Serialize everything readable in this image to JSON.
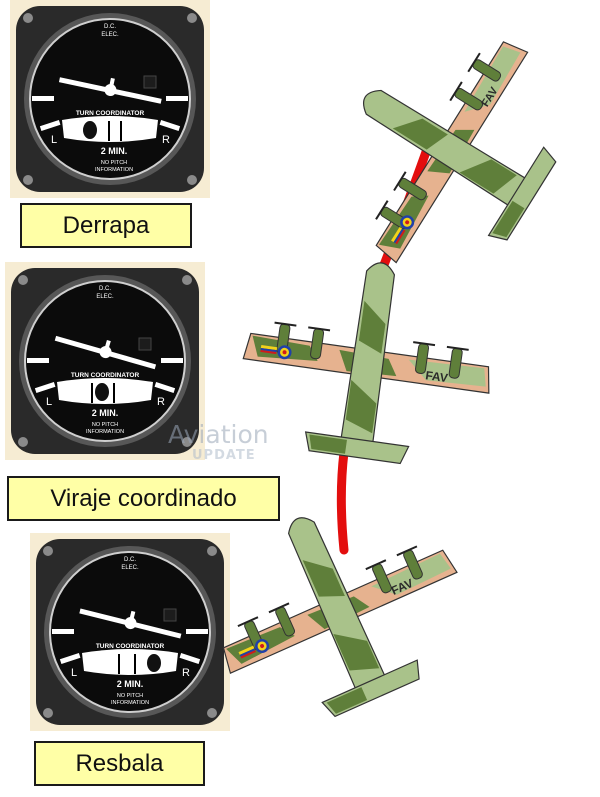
{
  "colors": {
    "panel_bg": "#f6ecd3",
    "bezel": "#2a2a2a",
    "face": "#0b0b0b",
    "marking": "#ffffff",
    "label_bg": "#ffffa6",
    "trail": "#e30e0e",
    "camo_dark": "#5f7f3a",
    "camo_light": "#a9c28a",
    "camo_tan": "#e6b28f"
  },
  "instruments": [
    {
      "name": "turn-coordinator-skid",
      "top_text": "D.C.",
      "top_text_2": "ELEC.",
      "title": "TURN COORDINATOR",
      "left_mark": "L",
      "right_mark": "R",
      "minutes": "2 MIN.",
      "footer_1": "NO PITCH",
      "footer_2": "INFORMATION"
    },
    {
      "name": "turn-coordinator-coordinated",
      "top_text": "D.C.",
      "top_text_2": "ELEC.",
      "title": "TURN COORDINATOR",
      "left_mark": "L",
      "right_mark": "R",
      "minutes": "2 MIN.",
      "footer_1": "NO PITCH",
      "footer_2": "INFORMATION"
    },
    {
      "name": "turn-coordinator-slip",
      "top_text": "D.C.",
      "top_text_2": "ELEC.",
      "title": "TURN COORDINATOR",
      "left_mark": "L",
      "right_mark": "R",
      "minutes": "2 MIN.",
      "footer_1": "NO PITCH",
      "footer_2": "INFORMATION"
    }
  ],
  "labels": {
    "skid": "Derrapa",
    "coordinated": "Viraje coordinado",
    "slip": "Resbala"
  },
  "watermark": {
    "line_1": "Aviation",
    "line_2": "UPDATE"
  },
  "aircraft_marking": "FAV",
  "icons": [
    "airplane-icon",
    "turn-coordinator-icon"
  ]
}
